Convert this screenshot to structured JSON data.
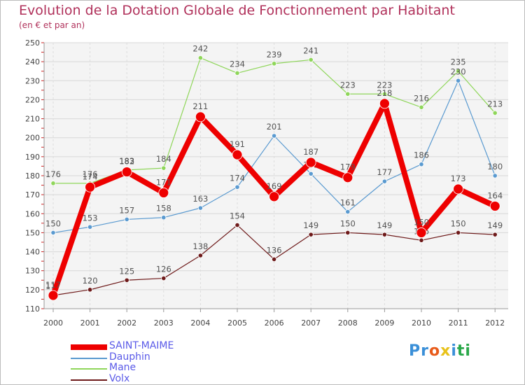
{
  "header": {
    "title": "Evolution de la Dotation Globale de Fonctionnement par Habitant",
    "subtitle": "(en € et par an)"
  },
  "logo": {
    "letters": [
      "P",
      "r",
      "o",
      "x",
      "i",
      "t",
      "i"
    ],
    "colors": [
      "#3a8fd8",
      "#3a8fd8",
      "#e85b1a",
      "#e8c21a",
      "#3a8fd8",
      "#2aa84a",
      "#2aa84a"
    ]
  },
  "chart_data": {
    "type": "line",
    "title": "Evolution de la Dotation Globale de Fonctionnement par Habitant",
    "ylabel": "(en € et par an)",
    "xlabel": "",
    "categories": [
      "2000",
      "2001",
      "2002",
      "2003",
      "2004",
      "2005",
      "2006",
      "2007",
      "2008",
      "2009",
      "2010",
      "2011",
      "2012"
    ],
    "ylim": [
      110,
      250
    ],
    "yticks": [
      110,
      120,
      130,
      140,
      150,
      160,
      170,
      180,
      190,
      200,
      210,
      220,
      230,
      240,
      250
    ],
    "grid": true,
    "legend_position": "bottom-left",
    "series": [
      {
        "name": "Mane",
        "color": "#8fd65a",
        "values": [
          176,
          176,
          183,
          184,
          242,
          234,
          239,
          241,
          223,
          223,
          216,
          235,
          213
        ]
      },
      {
        "name": "Dauphin",
        "color": "#5a9ad0",
        "values": [
          150,
          153,
          157,
          158,
          163,
          174,
          201,
          181,
          161,
          177,
          186,
          230,
          180
        ]
      },
      {
        "name": "Volx",
        "color": "#6e1a1a",
        "values": [
          117,
          120,
          125,
          126,
          138,
          154,
          136,
          149,
          150,
          149,
          146,
          150,
          149
        ]
      },
      {
        "name": "SAINT-MAIME",
        "color": "#ee0000",
        "values": [
          117,
          174,
          182,
          171,
          211,
          191,
          169,
          187,
          179,
          218,
          150,
          173,
          164
        ]
      }
    ],
    "legend_order": [
      "SAINT-MAIME",
      "Dauphin",
      "Mane",
      "Volx"
    ]
  }
}
